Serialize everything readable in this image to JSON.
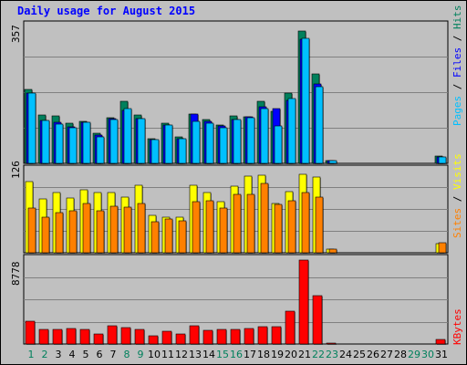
{
  "title": "Daily usage for August 2015",
  "colors": {
    "hits": "#00805C",
    "files": "#0000FF",
    "pages": "#00C0FF",
    "visits": "#FFFF00",
    "sites": "#FF8000",
    "kbytes": "#FF0000",
    "weekday_label": "#000000",
    "weekend_label": "#00805C",
    "background": "#C0C0C0",
    "panel_bg": "#C0C0C0"
  },
  "chart_data": [
    {
      "type": "bar",
      "title": "Daily usage for August 2015",
      "panel": "hits_files_pages",
      "max_label": "357",
      "ylim": [
        0,
        357
      ],
      "grid": true,
      "legend": "right (vertical)",
      "legend_labels": [
        "Pages",
        "Files",
        "Hits"
      ],
      "categories": [
        "1",
        "2",
        "3",
        "4",
        "5",
        "6",
        "7",
        "8",
        "9",
        "10",
        "11",
        "12",
        "13",
        "14",
        "15",
        "16",
        "17",
        "18",
        "19",
        "20",
        "21",
        "22",
        "23",
        "24",
        "25",
        "26",
        "27",
        "28",
        "29",
        "30",
        "31"
      ],
      "series": [
        {
          "name": "Hits",
          "values": [
            196,
            127,
            126,
            105,
            112,
            79,
            121,
            165,
            128,
            66,
            105,
            69,
            130,
            115,
            102,
            125,
            124,
            163,
            138,
            186,
            350,
            236,
            8,
            0,
            0,
            0,
            0,
            0,
            0,
            0,
            19
          ]
        },
        {
          "name": "Files",
          "values": [
            186,
            114,
            108,
            97,
            109,
            75,
            117,
            139,
            118,
            63,
            102,
            65,
            130,
            111,
            98,
            115,
            124,
            150,
            144,
            167,
            328,
            211,
            8,
            0,
            0,
            0,
            0,
            0,
            0,
            0,
            16
          ]
        },
        {
          "name": "Pages",
          "values": [
            186,
            114,
            103,
            94,
            109,
            69,
            115,
            145,
            117,
            63,
            102,
            65,
            110,
            105,
            94,
            115,
            120,
            145,
            100,
            172,
            330,
            203,
            8,
            0,
            0,
            0,
            0,
            0,
            0,
            0,
            16
          ]
        }
      ]
    },
    {
      "type": "bar",
      "panel": "visits_sites",
      "max_label": "126",
      "ylim": [
        0,
        126
      ],
      "grid": true,
      "legend": "right (vertical)",
      "legend_labels": [
        "Sites",
        "Visits"
      ],
      "categories": [
        "1",
        "2",
        "3",
        "4",
        "5",
        "6",
        "7",
        "8",
        "9",
        "10",
        "11",
        "12",
        "13",
        "14",
        "15",
        "16",
        "17",
        "18",
        "19",
        "20",
        "21",
        "22",
        "23",
        "24",
        "25",
        "26",
        "27",
        "28",
        "29",
        "30",
        "31"
      ],
      "series": [
        {
          "name": "Visits",
          "values": [
            109,
            82,
            93,
            84,
            96,
            93,
            93,
            85,
            103,
            58,
            54,
            55,
            104,
            92,
            78,
            102,
            117,
            119,
            76,
            94,
            121,
            116,
            5,
            0,
            0,
            0,
            0,
            0,
            0,
            0,
            14
          ]
        },
        {
          "name": "Sites",
          "values": [
            68,
            55,
            62,
            64,
            75,
            64,
            72,
            70,
            75,
            47,
            52,
            49,
            79,
            80,
            68,
            90,
            90,
            106,
            74,
            80,
            92,
            86,
            5,
            0,
            0,
            0,
            0,
            0,
            0,
            0,
            15
          ]
        }
      ]
    },
    {
      "type": "bar",
      "panel": "kbytes",
      "max_label": "8778",
      "ylim": [
        0,
        8778
      ],
      "grid": true,
      "legend": "right (vertical)",
      "legend_labels": [
        "KBytes"
      ],
      "categories": [
        "1",
        "2",
        "3",
        "4",
        "5",
        "6",
        "7",
        "8",
        "9",
        "10",
        "11",
        "12",
        "13",
        "14",
        "15",
        "16",
        "17",
        "18",
        "19",
        "20",
        "21",
        "22",
        "23",
        "24",
        "25",
        "26",
        "27",
        "28",
        "29",
        "30",
        "31"
      ],
      "series": [
        {
          "name": "KBytes",
          "values": [
            2384,
            1517,
            1517,
            1627,
            1517,
            1084,
            1951,
            1734,
            1517,
            867,
            1301,
            1084,
            1951,
            1409,
            1517,
            1517,
            1627,
            1843,
            1843,
            3468,
            8778,
            5094,
            100,
            0,
            0,
            0,
            0,
            0,
            0,
            0,
            470
          ]
        }
      ]
    }
  ],
  "days": [
    {
      "label": "1",
      "weekend": true
    },
    {
      "label": "2",
      "weekend": true
    },
    {
      "label": "3",
      "weekend": false
    },
    {
      "label": "4",
      "weekend": false
    },
    {
      "label": "5",
      "weekend": false
    },
    {
      "label": "6",
      "weekend": false
    },
    {
      "label": "7",
      "weekend": false
    },
    {
      "label": "8",
      "weekend": true
    },
    {
      "label": "9",
      "weekend": true
    },
    {
      "label": "10",
      "weekend": false
    },
    {
      "label": "11",
      "weekend": false
    },
    {
      "label": "12",
      "weekend": false
    },
    {
      "label": "13",
      "weekend": false
    },
    {
      "label": "14",
      "weekend": false
    },
    {
      "label": "15",
      "weekend": true
    },
    {
      "label": "16",
      "weekend": true
    },
    {
      "label": "17",
      "weekend": false
    },
    {
      "label": "18",
      "weekend": false
    },
    {
      "label": "19",
      "weekend": false
    },
    {
      "label": "20",
      "weekend": false
    },
    {
      "label": "21",
      "weekend": false
    },
    {
      "label": "22",
      "weekend": true
    },
    {
      "label": "23",
      "weekend": true
    },
    {
      "label": "24",
      "weekend": false
    },
    {
      "label": "25",
      "weekend": false
    },
    {
      "label": "26",
      "weekend": false
    },
    {
      "label": "27",
      "weekend": false
    },
    {
      "label": "28",
      "weekend": false
    },
    {
      "label": "29",
      "weekend": true
    },
    {
      "label": "30",
      "weekend": true
    },
    {
      "label": "31",
      "weekend": false
    }
  ]
}
